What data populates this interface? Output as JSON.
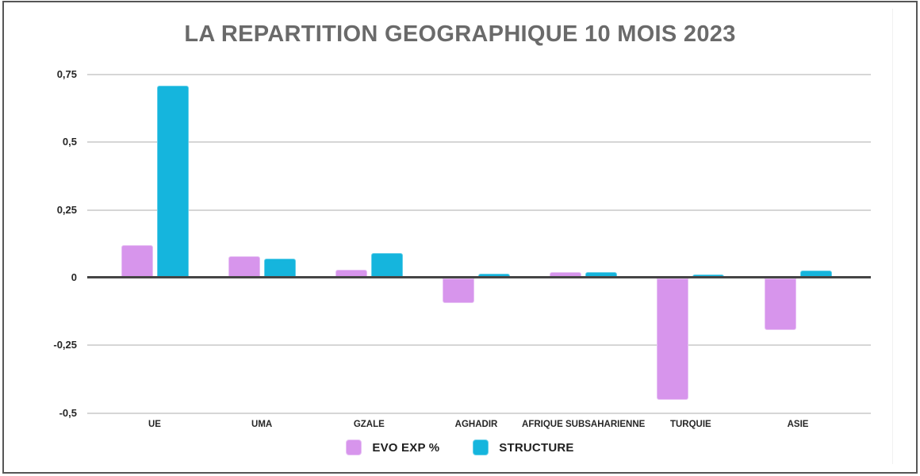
{
  "window": {
    "background": "#ffffff",
    "border_color": "#565656"
  },
  "chart_data": {
    "type": "bar",
    "title": "LA REPARTITION GEOGRAPHIQUE 10 MOIS 2023",
    "title_color": "#6a6a6a",
    "categories": [
      "UE",
      "UMA",
      "GZALE",
      "AGHADIR",
      "AFRIQUE SUBSAHARIENNE",
      "TURQUIE",
      "ASIE"
    ],
    "series": [
      {
        "name": "EVO EXP %",
        "color": "#d795ec",
        "edge_color": "#e7c0f4",
        "values": [
          0.12,
          0.08,
          0.03,
          -0.09,
          0.02,
          -0.45,
          -0.19
        ]
      },
      {
        "name": "STRUCTURE",
        "color": "#15b5dd",
        "edge_color": "#63cfe9",
        "values": [
          0.71,
          0.07,
          0.09,
          0.015,
          0.02,
          0.01,
          0.025
        ]
      }
    ],
    "y_ticks": [
      0.75,
      0.5,
      0.25,
      0,
      -0.25,
      -0.5
    ],
    "y_tick_labels": [
      "0,75",
      "0,5",
      "0,25",
      "0",
      "-0,25",
      "-0,5"
    ],
    "ylim": [
      -0.5,
      0.75
    ],
    "xlabel": "",
    "ylabel": "",
    "grid": true,
    "gridline_color": "#d6d6d6",
    "zero_line_color": "#454545",
    "legend_position": "bottom"
  }
}
